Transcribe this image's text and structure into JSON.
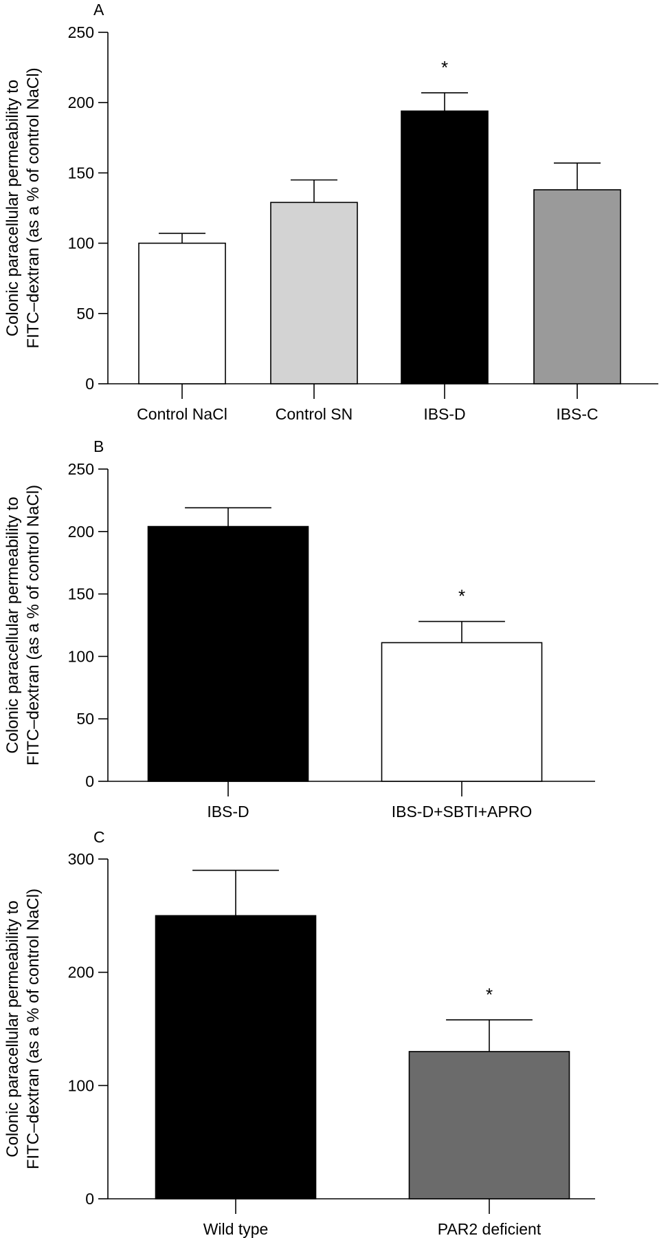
{
  "chart_data": [
    {
      "panel": "A",
      "type": "bar",
      "categories": [
        "Control NaCl",
        "Control SN",
        "IBS-D",
        "IBS-C"
      ],
      "values": [
        100,
        129,
        194,
        138
      ],
      "errors": [
        7,
        16,
        13,
        19
      ],
      "colors": [
        "#ffffff",
        "#d3d3d3",
        "#000000",
        "#9a9a9a"
      ],
      "significance": [
        "",
        "",
        "*",
        ""
      ],
      "ylim": [
        0,
        250
      ],
      "yticks": [
        0,
        50,
        100,
        150,
        200,
        250
      ],
      "ylabel": [
        "Colonic paracellular permeability to",
        "FITC–dextran (as a % of control NaCl)"
      ]
    },
    {
      "panel": "B",
      "type": "bar",
      "categories": [
        "IBS-D",
        "IBS-D+SBTI+APRO"
      ],
      "values": [
        204,
        111
      ],
      "errors": [
        15,
        17
      ],
      "colors": [
        "#000000",
        "#ffffff"
      ],
      "significance": [
        "",
        "*"
      ],
      "ylim": [
        0,
        250
      ],
      "yticks": [
        0,
        50,
        100,
        150,
        200,
        250
      ],
      "ylabel": [
        "Colonic paracellular permeability to",
        "FITC–dextran (as a % of control NaCl)"
      ]
    },
    {
      "panel": "C",
      "type": "bar",
      "categories": [
        "Wild type",
        "PAR2 deficient"
      ],
      "values": [
        250,
        130
      ],
      "errors": [
        40,
        28
      ],
      "colors": [
        "#000000",
        "#6b6b6b"
      ],
      "significance": [
        "",
        "*"
      ],
      "ylim": [
        0,
        300
      ],
      "yticks": [
        0,
        100,
        200,
        300
      ],
      "ylabel": [
        "Colonic paracellular permeability to",
        "FITC–dextran (as a % of control NaCl)"
      ]
    }
  ]
}
